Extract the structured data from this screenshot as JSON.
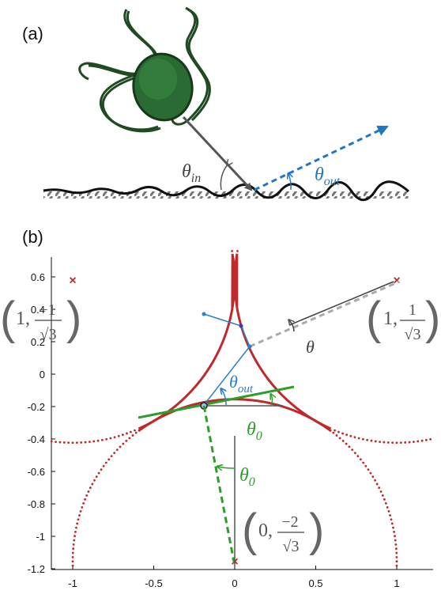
{
  "panel_a": {
    "label": "(a)",
    "theta_in": "θ",
    "theta_in_sub": "in",
    "theta_out": "θ",
    "theta_out_sub": "out",
    "colors": {
      "ball": "#1f5c2a",
      "incoming": "#555555",
      "outgoing": "#1f77c4",
      "ground": "#111111"
    }
  },
  "panel_b": {
    "label": "(b)",
    "theta": "θ",
    "theta_out": "θ",
    "theta_out_sub": "out",
    "theta0_green": "θ",
    "theta0_green_sub": "0",
    "theta0_lower": "θ",
    "theta0_lower_sub": "0",
    "pt_left": {
      "x": "1,",
      "num": "−1",
      "den": "√3"
    },
    "pt_right": {
      "x": "1,",
      "num": "1",
      "den": "√3"
    },
    "pt_bottom": {
      "x": "0,",
      "num": "−2",
      "den": "√3"
    },
    "colors": {
      "curve": "#c0282a",
      "path": "#2a7fd0",
      "tangent": "#2aa02a",
      "aux": "#666666"
    }
  },
  "chart_data": {
    "type": "line",
    "xlim": [
      -1.2,
      1.2
    ],
    "ylim": [
      -1.2,
      0.75
    ],
    "xticks": [
      "-1",
      "-0.5",
      "0",
      "0.5",
      "1"
    ],
    "yticks": [
      "0.6",
      "0.4",
      "0.2",
      "0",
      "-0.2",
      "-0.4",
      "-0.6",
      "-0.8",
      "-1",
      "-1.2"
    ],
    "centers": [
      {
        "x": -1,
        "y": 0.577
      },
      {
        "x": 1,
        "y": 0.577
      },
      {
        "x": 0,
        "y": -1.155
      }
    ],
    "radius": 1
  }
}
